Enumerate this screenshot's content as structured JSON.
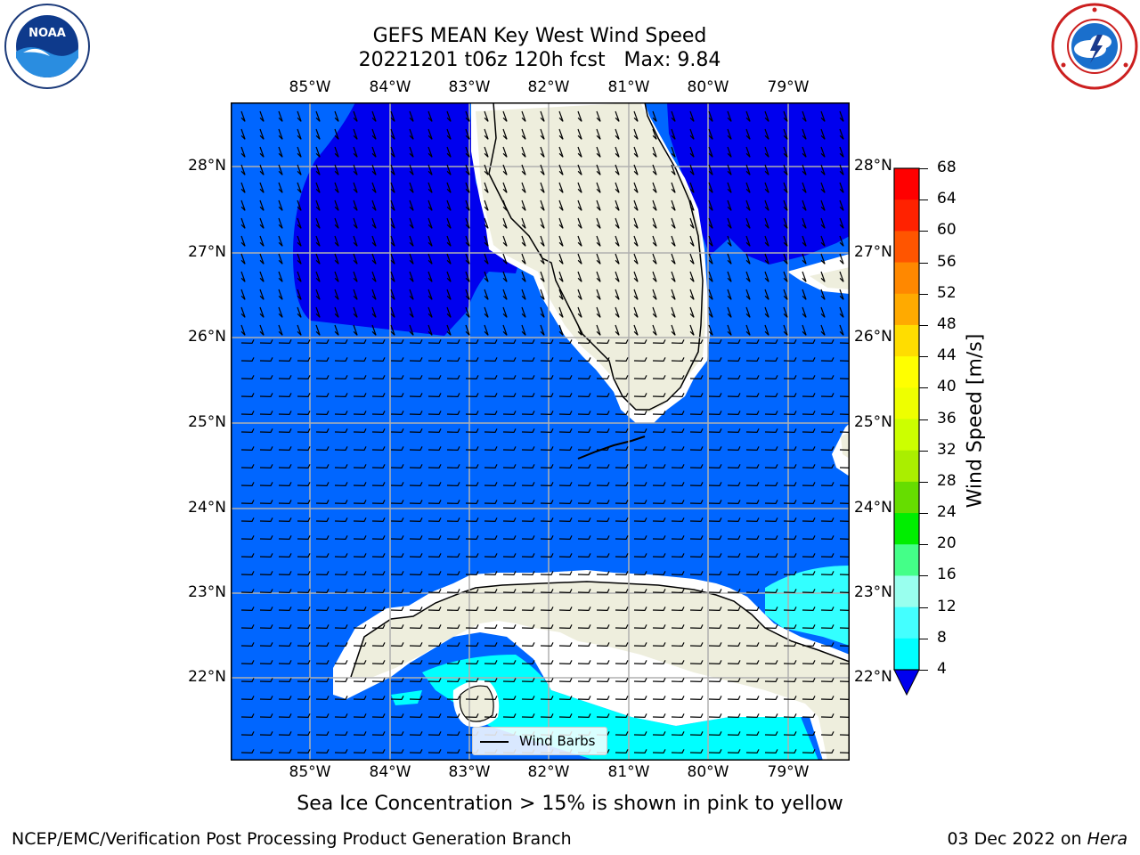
{
  "title": {
    "line1": "GEFS MEAN Key West Wind Speed",
    "line2": "20221201 t06z 120h fcst   Max: 9.84"
  },
  "logos": {
    "left": "noaa-logo",
    "right": "nws-logo"
  },
  "map": {
    "lon_ticks": [
      "85°W",
      "84°W",
      "83°W",
      "82°W",
      "81°W",
      "80°W",
      "79°W"
    ],
    "lat_ticks": [
      "28°N",
      "27°N",
      "26°N",
      "25°N",
      "24°N",
      "23°N",
      "22°N"
    ],
    "colors": {
      "land": "#eeeedd",
      "ocean_4_8": "#0066ff",
      "ocean_0_4": "#0000ee",
      "ocean_8_12": "#00ffff",
      "gridline": "#b0b0b0"
    }
  },
  "legend": {
    "label": "Wind Barbs"
  },
  "colorbar": {
    "label": "Wind Speed [m/s]",
    "ticks": [
      "68",
      "64",
      "60",
      "56",
      "52",
      "48",
      "44",
      "40",
      "36",
      "32",
      "28",
      "24",
      "20",
      "16",
      "12",
      "8",
      "4"
    ],
    "colors": [
      "#ff0000",
      "#ff2200",
      "#ff5500",
      "#ff8800",
      "#ffaa00",
      "#ffdd00",
      "#ffff00",
      "#eeff00",
      "#ccff00",
      "#aaee00",
      "#66dd00",
      "#00ee00",
      "#44ff88",
      "#99ffee",
      "#44ffff",
      "#00ffff",
      "#0066ff",
      "#0000ee"
    ]
  },
  "note": "Sea Ice Concentration > 15% is shown in pink to yellow",
  "footer": {
    "left": "NCEP/EMC/Verification Post Processing Product Generation Branch",
    "right_prefix": "03 Dec 2022 on ",
    "right_machine": "Hera"
  }
}
